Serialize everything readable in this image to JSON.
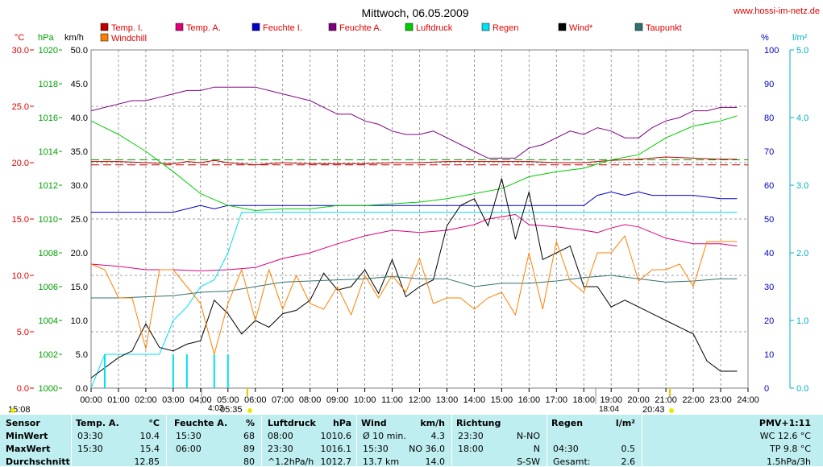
{
  "header": {
    "title": "Mittwoch, 06.05.2009",
    "site": "www.hossi-im-netz.de"
  },
  "legend": [
    {
      "name": "Temp. I.",
      "color": "#c00000"
    },
    {
      "name": "Temp. A.",
      "color": "#e0007a"
    },
    {
      "name": "Feuchte I.",
      "color": "#0000c8"
    },
    {
      "name": "Feuchte A.",
      "color": "#800080"
    },
    {
      "name": "Luftdruck",
      "color": "#00cc00"
    },
    {
      "name": "Regen",
      "color": "#00e0f0"
    },
    {
      "name": "Wind*",
      "color": "#000000"
    },
    {
      "name": "Taupunkt",
      "color": "#307070"
    },
    {
      "name": "Windchill",
      "color": "#ff8000"
    }
  ],
  "axes": {
    "temp": {
      "unit": "°C",
      "ticks": [
        "30.0",
        "25.0",
        "20.0",
        "15.0",
        "10.0",
        "5.0",
        "0.0"
      ],
      "color": "#e00000"
    },
    "pressure": {
      "unit": "hPa",
      "ticks": [
        "1020",
        "1018",
        "1016",
        "1014",
        "1012",
        "1010",
        "1008",
        "1006",
        "1004",
        "1002",
        "1000"
      ],
      "color": "#00a000"
    },
    "wind": {
      "unit": "km/h",
      "ticks": [
        "50.0",
        "45.0",
        "40.0",
        "35.0",
        "30.0",
        "25.0",
        "20.0",
        "15.0",
        "10.0",
        "5.0",
        "0.0"
      ],
      "color": "#000000"
    },
    "humidity": {
      "unit": "%",
      "ticks": [
        "100",
        "90",
        "80",
        "70",
        "60",
        "50",
        "40",
        "30",
        "20",
        "10",
        "0"
      ],
      "color": "#0000c0"
    },
    "rain": {
      "unit": "l/m²",
      "ticks": [
        "5.0",
        "4.0",
        "3.0",
        "2.0",
        "1.0",
        "0.0"
      ],
      "color": "#00b0c0"
    },
    "time_ticks": [
      "00:00",
      "01:00",
      "02:00",
      "03:00",
      "04:00",
      "05:00",
      "06:00",
      "07:00",
      "08:00",
      "09:00",
      "10:00",
      "11:00",
      "12:00",
      "13:00",
      "14:00",
      "15:00",
      "16:00",
      "17:00",
      "18:00",
      "19:00",
      "20:00",
      "21:00",
      "22:00",
      "23:00",
      "24:00"
    ]
  },
  "markers": {
    "left": "15:08",
    "moonset": "4:03",
    "sunrise": "05:35",
    "mark1": "18:04",
    "sunset": "20:43"
  },
  "chart_data": {
    "type": "line",
    "title": "Mittwoch, 06.05.2009",
    "x_unit": "hours",
    "xlim": [
      0,
      24
    ],
    "series": [
      {
        "name": "Temp. I.",
        "axis": "temp",
        "color": "#c00000",
        "x": [
          0,
          1,
          2,
          3,
          3.5,
          4,
          4.5,
          5,
          6,
          7,
          8,
          9,
          10,
          11,
          12,
          13,
          14,
          15,
          16,
          17,
          18,
          19,
          20,
          21,
          22,
          23,
          23.6
        ],
        "y": [
          20.1,
          20.1,
          20.0,
          19.9,
          20.1,
          20.0,
          20.2,
          20.0,
          19.8,
          20.0,
          19.9,
          19.9,
          19.9,
          20.0,
          20.0,
          20.1,
          20.1,
          20.1,
          20.1,
          20.0,
          20.0,
          20.2,
          20.3,
          20.5,
          20.4,
          20.3,
          20.3
        ]
      },
      {
        "name": "Temp. A.",
        "axis": "temp",
        "color": "#e0007a",
        "x": [
          0,
          1,
          2,
          3,
          4,
          5,
          6,
          7,
          8,
          9,
          10,
          11,
          12,
          13,
          14,
          14.5,
          15,
          15.5,
          16,
          17,
          18,
          18.5,
          19,
          19.5,
          20,
          21,
          22,
          23,
          23.6
        ],
        "y": [
          11.0,
          10.8,
          10.5,
          10.5,
          10.4,
          10.5,
          10.7,
          11.5,
          12.0,
          12.8,
          13.5,
          14.0,
          13.8,
          14.0,
          14.5,
          15.0,
          15.2,
          15.4,
          14.5,
          14.3,
          14.0,
          13.8,
          14.2,
          14.5,
          14.3,
          13.3,
          12.8,
          12.8,
          12.6
        ]
      },
      {
        "name": "Feuchte I.",
        "axis": "humidity",
        "color": "#0000c8",
        "x": [
          0,
          1,
          2,
          3,
          3.5,
          4,
          4.5,
          5,
          6,
          7,
          8,
          9,
          10,
          11,
          12,
          13,
          14,
          15,
          16,
          17,
          18,
          18.5,
          19,
          19.5,
          20,
          20.5,
          21,
          22,
          23,
          23.6
        ],
        "y": [
          52,
          52,
          52,
          52,
          53,
          54,
          53,
          54,
          54,
          54,
          54,
          54,
          54,
          54,
          54,
          54,
          54,
          54,
          54,
          54,
          54,
          57,
          58,
          57,
          58,
          57,
          57,
          57,
          56,
          56
        ]
      },
      {
        "name": "Feuchte A.",
        "axis": "humidity",
        "color": "#800080",
        "x": [
          0,
          1,
          1.5,
          2,
          2.5,
          3,
          3.5,
          4,
          4.5,
          5,
          6,
          7,
          8,
          9,
          9.5,
          10,
          10.5,
          11,
          11.5,
          12,
          12.5,
          13,
          14,
          14.5,
          15,
          15.5,
          16,
          16.5,
          17,
          17.5,
          18,
          18.5,
          19,
          19.5,
          20,
          20.5,
          21,
          21.5,
          22,
          22.5,
          23,
          23.6
        ],
        "y": [
          82,
          84,
          85,
          85,
          86,
          87,
          88,
          88,
          89,
          89,
          89,
          87,
          85,
          81,
          81,
          79,
          78,
          76,
          75,
          75,
          76,
          74,
          70,
          68,
          68,
          68,
          71,
          72,
          74,
          76,
          75,
          77,
          76,
          74,
          74,
          77,
          79,
          80,
          82,
          82,
          83,
          83
        ]
      },
      {
        "name": "Luftdruck",
        "axis": "pressure",
        "color": "#00cc00",
        "x": [
          0,
          1,
          2,
          3,
          4,
          5,
          6,
          7,
          8,
          9,
          10,
          11,
          12,
          13,
          14,
          15,
          16,
          17,
          18,
          19,
          20,
          21,
          22,
          23,
          23.6
        ],
        "y": [
          1015.8,
          1015.0,
          1014.0,
          1012.8,
          1011.5,
          1010.8,
          1010.5,
          1010.6,
          1010.6,
          1010.8,
          1010.8,
          1010.9,
          1011.0,
          1011.2,
          1011.5,
          1011.8,
          1012.5,
          1012.8,
          1013.0,
          1013.5,
          1013.8,
          1014.8,
          1015.5,
          1015.8,
          1016.1
        ]
      },
      {
        "name": "Regen",
        "axis": "rain",
        "color": "#00e0f0",
        "x": [
          0,
          0.5,
          1,
          2,
          2.5,
          3,
          3.5,
          4,
          4.5,
          5,
          5.5,
          6,
          7,
          8,
          9,
          10,
          11,
          12,
          13,
          14,
          15,
          16,
          17,
          18,
          19,
          20,
          21,
          22,
          23,
          23.6
        ],
        "y": [
          0,
          0.5,
          0.5,
          0.5,
          0.5,
          1.0,
          1.2,
          1.5,
          1.6,
          2.0,
          2.6,
          2.6,
          2.6,
          2.6,
          2.6,
          2.6,
          2.6,
          2.6,
          2.6,
          2.6,
          2.6,
          2.6,
          2.6,
          2.6,
          2.6,
          2.6,
          2.6,
          2.6,
          2.6,
          2.6
        ]
      },
      {
        "name": "Wind*",
        "axis": "wind",
        "color": "#000000",
        "x": [
          0,
          0.5,
          1,
          1.5,
          2,
          2.5,
          3,
          3.5,
          4,
          4.5,
          5,
          5.5,
          6,
          6.5,
          7,
          7.5,
          8,
          8.5,
          9,
          9.5,
          10,
          10.5,
          11,
          11.5,
          12,
          12.5,
          13,
          13.5,
          14,
          14.5,
          15,
          15.5,
          16,
          16.5,
          17,
          17.5,
          18,
          18.5,
          19,
          19.5,
          20,
          20.5,
          21,
          21.5,
          22,
          22.5,
          23,
          23.6
        ],
        "y": [
          1.5,
          3,
          4.5,
          5.5,
          9.5,
          6,
          5.5,
          6.5,
          7,
          13,
          11,
          8,
          10,
          9,
          11,
          11.5,
          13,
          17,
          14.5,
          15,
          17.5,
          14,
          19,
          13.5,
          15,
          16,
          24,
          27,
          28,
          24,
          31,
          22,
          29,
          19,
          20,
          21,
          15,
          15,
          12,
          13,
          12,
          11,
          10,
          9,
          8,
          4,
          2.5,
          2.5
        ]
      },
      {
        "name": "Taupunkt",
        "axis": "temp",
        "color": "#307070",
        "x": [
          0,
          1,
          2,
          3,
          4,
          5,
          6,
          7,
          8,
          9,
          10,
          11,
          12,
          13,
          14,
          15,
          16,
          17,
          18,
          19,
          20,
          21,
          22,
          23,
          23.6
        ],
        "y": [
          8.0,
          8.0,
          8.1,
          8.2,
          8.5,
          8.6,
          9.0,
          9.4,
          9.5,
          9.6,
          9.7,
          9.9,
          9.7,
          9.7,
          9.0,
          9.3,
          9.3,
          9.5,
          9.8,
          10.0,
          9.7,
          9.4,
          9.5,
          9.7,
          9.7
        ]
      },
      {
        "name": "Windchill",
        "axis": "temp",
        "color": "#ff8000",
        "x": [
          0,
          0.5,
          1,
          1.5,
          2,
          2.5,
          3,
          3.5,
          4,
          4.5,
          5,
          5.5,
          6,
          6.5,
          7,
          7.5,
          8,
          8.5,
          9,
          9.5,
          10,
          10.5,
          11,
          11.5,
          12,
          12.5,
          13,
          13.5,
          14,
          14.5,
          15,
          15.5,
          16,
          16.5,
          17,
          17.5,
          18,
          18.5,
          19,
          19.5,
          20,
          20.5,
          21,
          21.5,
          22,
          22.5,
          23,
          23.6
        ],
        "y": [
          11.0,
          10.5,
          8.0,
          8.0,
          3.5,
          10.5,
          10.5,
          9.0,
          7.5,
          3.0,
          7.5,
          10.5,
          6.0,
          10.5,
          7.0,
          10.0,
          7.5,
          7.0,
          9.0,
          6.5,
          10.0,
          8.0,
          10.0,
          8.5,
          11.5,
          7.5,
          8.0,
          8.0,
          7.0,
          8.0,
          8.5,
          6.5,
          12.0,
          7.0,
          13.0,
          9.5,
          8.5,
          12.0,
          12.0,
          13.5,
          9.5,
          10.5,
          10.5,
          11.0,
          9.0,
          13.0,
          13.0,
          13.0
        ]
      },
      {
        "name": "Regen 5min",
        "axis": "rain",
        "color": "#00e0f0",
        "type": "bar",
        "x": [
          0.5,
          3.0,
          3.5,
          4.5,
          5.0
        ],
        "y": [
          0.5,
          0.5,
          0.5,
          0.5,
          0.5
        ]
      }
    ],
    "reference_lines": {
      "temp": [
        19.8
      ],
      "pressure": [
        1013.5
      ]
    }
  },
  "table": {
    "row_labels": [
      "Sensor",
      "MinWert",
      "MaxWert",
      "Durchschnitt"
    ],
    "temp": {
      "head": "Temp. A.",
      "unit": "°C",
      "rows": [
        [
          "03:30",
          "10.4"
        ],
        [
          "15:30",
          "15.4"
        ],
        [
          "",
          "12.85"
        ]
      ]
    },
    "hum": {
      "head": "Feuchte A.",
      "unit": "%",
      "rows": [
        [
          "15:30",
          "68"
        ],
        [
          "06:00",
          "89"
        ],
        [
          "",
          "80"
        ]
      ]
    },
    "press": {
      "head": "Luftdruck",
      "unit": "hPa",
      "rows": [
        [
          "08:00",
          "1010.6"
        ],
        [
          "23:30",
          "1016.1"
        ],
        [
          "^1.2hPa/h",
          "1012.7"
        ]
      ]
    },
    "wind": {
      "head": "Wind",
      "unit": "km/h",
      "rows": [
        [
          "Ø 10 min.",
          "4.3"
        ],
        [
          "15:30",
          "NO 36.0"
        ],
        [
          "13.7 km",
          "14.0"
        ]
      ]
    },
    "dir": {
      "head": "Richtung",
      "rows": [
        [
          "23:30",
          "N-NO"
        ],
        [
          "18:00",
          "N"
        ],
        [
          "",
          "S-SW"
        ]
      ]
    },
    "rain": {
      "head": "Regen",
      "unit": "l/m²",
      "rows": [
        [
          "",
          ""
        ],
        [
          "04:30",
          "0.5"
        ],
        [
          "Gesamt:",
          "2.6"
        ]
      ]
    },
    "pmv": {
      "head": "PMV+1:11",
      "rows": [
        "WC 12.6 °C",
        "TP 9.8 °C",
        "1.5hPa/3h"
      ]
    }
  }
}
